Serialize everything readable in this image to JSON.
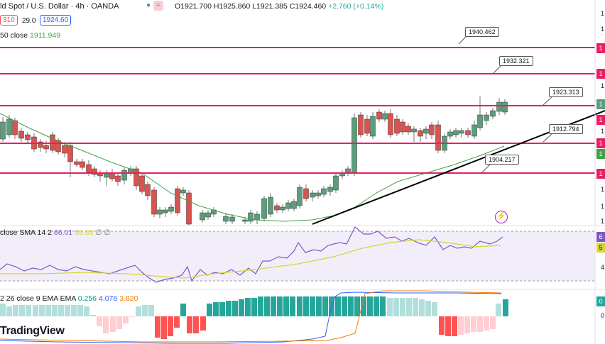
{
  "header": {
    "title": "ld Spot / U.S. Dollar · 4h · OANDA",
    "ohlc": {
      "open": "O1921.700",
      "high": "H1925.860",
      "low": "L1921.385",
      "close": "C1924.460",
      "change": "+2.760 (+0.14%)"
    },
    "pills": {
      "sell": "310",
      "spread": "29.0",
      "buy": "1924.60"
    },
    "icons": [
      "market-open-dot-icon",
      "wave-icon"
    ]
  },
  "sma_legend": {
    "label": "50 close",
    "value": "1911.949",
    "color": "#43a047"
  },
  "price_levels": [
    {
      "label": "1940.462",
      "value": 1940.462
    },
    {
      "label": "1932.321",
      "value": 1932.321
    },
    {
      "label": "1923.313",
      "value": 1923.313
    },
    {
      "label": "1912.794",
      "value": 1912.794
    },
    {
      "label": "1904.217",
      "value": 1904.217
    }
  ],
  "rsi": {
    "legend": "close SMA 14 2",
    "rsi_value": "66.01",
    "sma_value": "59.83",
    "extra": "∅ ∅"
  },
  "macd": {
    "legend": "2 26 close 9 EMA EMA",
    "hist_value": "0.256",
    "macd_value": "4.076",
    "signal_value": "3.820"
  },
  "axis_labels": {
    "price": [
      "1",
      "1",
      "1",
      "1",
      "1",
      "1",
      "1",
      "1",
      "1",
      "1",
      "1",
      "1",
      "1",
      "1"
    ],
    "rsi": [
      "6",
      "5",
      "4"
    ],
    "macd": [
      "0",
      "0"
    ]
  },
  "brand": {
    "logo_text": "TradingView"
  },
  "colors": {
    "up": "#5b9e7b",
    "down": "#d9534f",
    "level": "#e91e63",
    "sma": "#43a047",
    "rsi": "#7e57c2",
    "rsi_sma": "#d4d43a",
    "macd": "#2962ff",
    "signal": "#f57c00"
  }
}
